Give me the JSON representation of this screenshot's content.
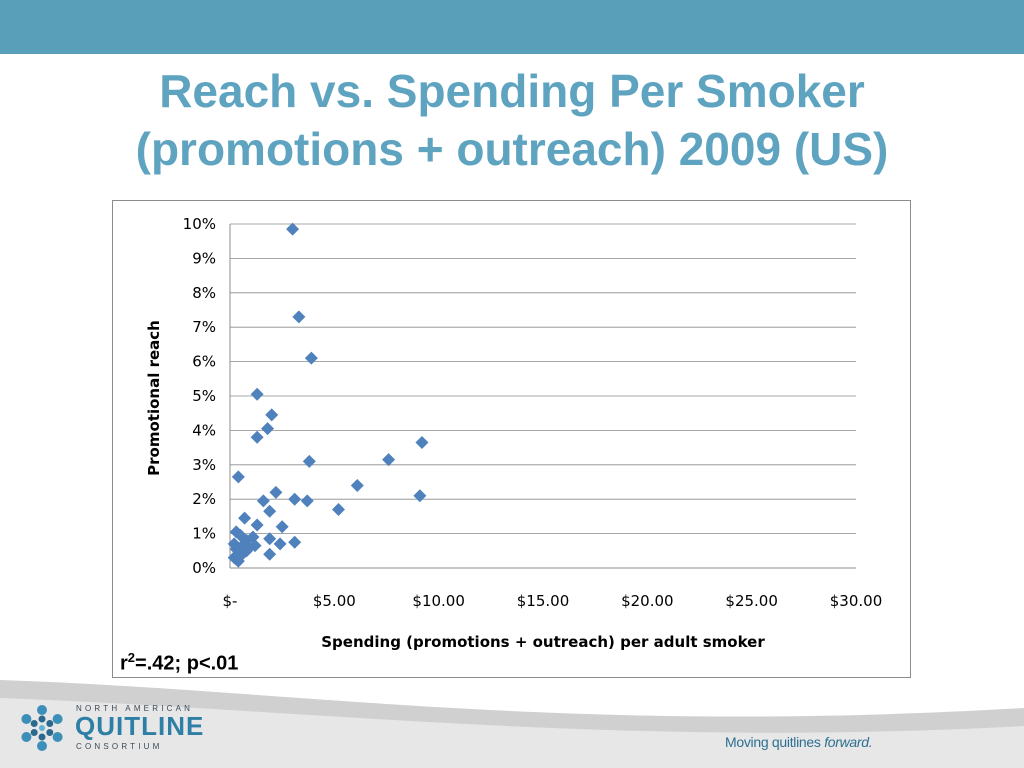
{
  "slide": {
    "title_line1": "Reach vs. Spending Per Smoker",
    "title_line2": "(promotions + outreach) 2009 (US)",
    "stats_r": "r",
    "stats_sup": "2",
    "stats_rest": "=.42; p<.01"
  },
  "colors": {
    "bar": "#5a9fba",
    "title": "#5ea3c0",
    "marker": "#4f81bd",
    "gridline": "#8c8c8c"
  },
  "logo": {
    "top_text": "NORTH AMERICAN",
    "main_text": "QUITLINE",
    "bottom_text": "CONSORTIUM",
    "icon": "snowflake-logo-icon"
  },
  "footer": {
    "tagline_start": "Moving quitlines ",
    "tagline_em": "forward."
  },
  "chart_data": {
    "type": "scatter",
    "title": "",
    "xlabel": "Spending (promotions + outreach) per adult smoker",
    "ylabel": "Promotional reach",
    "xlim": [
      0,
      30
    ],
    "ylim": [
      0,
      10
    ],
    "x_ticks": [
      0,
      5,
      10,
      15,
      20,
      25,
      30
    ],
    "x_tick_labels": [
      "$-",
      "$5.00",
      "$10.00",
      "$15.00",
      "$20.00",
      "$25.00",
      "$30.00"
    ],
    "y_ticks": [
      0,
      1,
      2,
      3,
      4,
      5,
      6,
      7,
      8,
      9,
      10
    ],
    "y_tick_labels": [
      "0%",
      "1%",
      "2%",
      "3%",
      "4%",
      "5%",
      "6%",
      "7%",
      "8%",
      "9%",
      "10%"
    ],
    "grid": "horizontal",
    "legend": "none",
    "marker": "diamond",
    "series": [
      {
        "x": [
          3.0,
          3.3,
          3.9,
          1.3,
          2.0,
          1.8,
          1.3,
          9.2,
          3.8,
          7.6,
          0.4,
          6.1,
          2.2,
          9.1,
          3.1,
          3.7,
          1.6,
          5.2,
          1.9,
          0.7,
          1.3,
          2.5,
          0.3,
          1.1,
          0.5,
          0.8,
          1.9,
          2.4,
          0.2,
          0.6,
          0.9,
          3.1,
          0.3,
          1.2,
          0.8,
          0.5,
          0.2,
          1.9,
          0.5,
          0.3,
          0.4,
          0.6
        ],
        "y": [
          9.85,
          7.3,
          6.1,
          5.05,
          4.45,
          4.05,
          3.8,
          3.65,
          3.1,
          3.15,
          2.65,
          2.4,
          2.2,
          2.1,
          2.0,
          1.95,
          1.95,
          1.7,
          1.65,
          1.45,
          1.25,
          1.2,
          1.05,
          0.9,
          0.95,
          0.8,
          0.85,
          0.7,
          0.7,
          0.65,
          0.6,
          0.75,
          0.55,
          0.65,
          0.5,
          0.45,
          0.3,
          0.4,
          0.35,
          0.25,
          0.2,
          0.5
        ]
      }
    ]
  }
}
